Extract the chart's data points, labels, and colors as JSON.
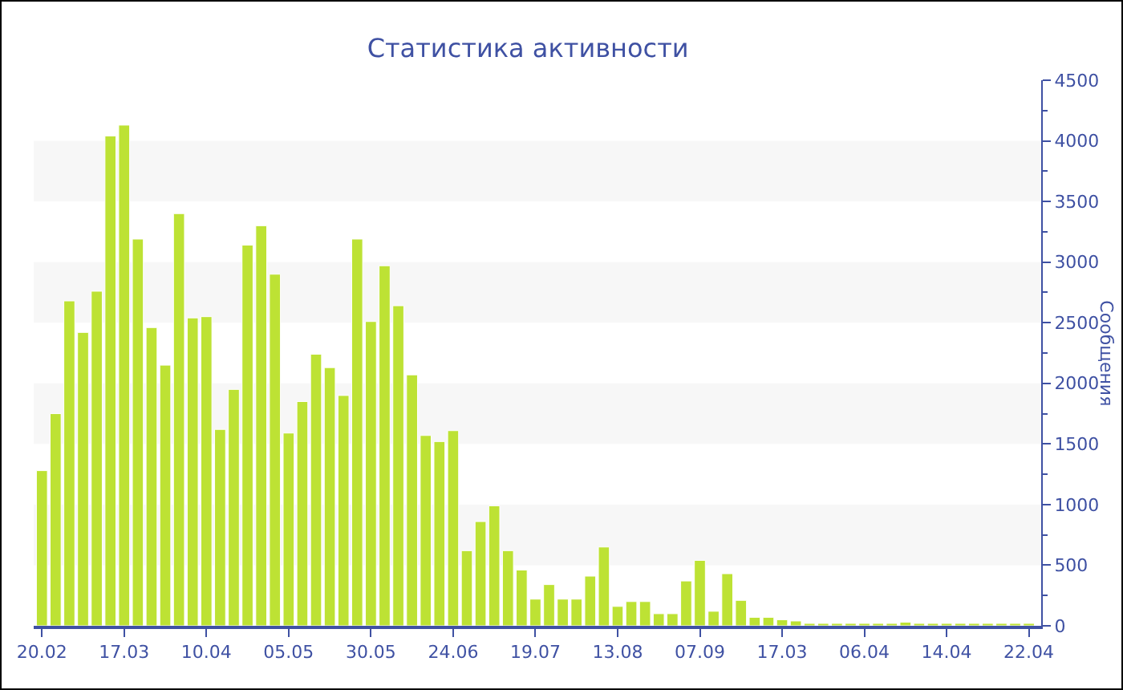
{
  "chart_data": {
    "type": "bar",
    "title": "Статистика активности",
    "ylabel": "Сообщения",
    "categories": [
      "20.02",
      null,
      null,
      null,
      null,
      null,
      "17.03",
      null,
      null,
      null,
      null,
      null,
      "10.04",
      null,
      null,
      null,
      null,
      null,
      "05.05",
      null,
      null,
      null,
      null,
      null,
      "30.05",
      null,
      null,
      null,
      null,
      null,
      "24.06",
      null,
      null,
      null,
      null,
      null,
      "19.07",
      null,
      null,
      null,
      null,
      null,
      "13.08",
      null,
      null,
      null,
      null,
      null,
      "07.09",
      null,
      null,
      null,
      null,
      null,
      "17.03",
      null,
      null,
      null,
      null,
      null,
      "06.04",
      null,
      null,
      null,
      null,
      null,
      "14.04",
      null,
      null,
      null,
      null,
      null,
      "22.04"
    ],
    "values": [
      1280,
      1750,
      2680,
      2420,
      2760,
      4040,
      4130,
      3190,
      2460,
      2150,
      3400,
      2540,
      2550,
      1620,
      1950,
      3140,
      3300,
      2900,
      1590,
      1850,
      2240,
      2130,
      1900,
      3190,
      2510,
      2970,
      2640,
      2070,
      1570,
      1520,
      1610,
      620,
      860,
      990,
      620,
      460,
      220,
      340,
      220,
      220,
      410,
      650,
      160,
      200,
      200,
      100,
      100,
      370,
      540,
      120,
      430,
      210,
      70,
      70,
      50,
      40,
      20,
      20,
      20,
      20,
      20,
      20,
      20,
      30,
      20,
      20,
      20,
      20,
      20,
      20,
      20,
      20,
      20
    ],
    "color": "#bde234",
    "ylim": [
      0,
      4500
    ],
    "yticks": [
      0,
      500,
      1000,
      1500,
      2000,
      2500,
      3000,
      3500,
      4000,
      4500
    ],
    "bands": [
      {
        "axis": "y",
        "from": 500,
        "to": 1000,
        "color": "#f7f7f7"
      },
      {
        "axis": "y",
        "from": 1500,
        "to": 2000,
        "color": "#f7f7f7"
      },
      {
        "axis": "y",
        "from": 2500,
        "to": 3000,
        "color": "#f7f7f7"
      },
      {
        "axis": "y",
        "from": 3500,
        "to": 4000,
        "color": "#f7f7f7"
      }
    ]
  }
}
